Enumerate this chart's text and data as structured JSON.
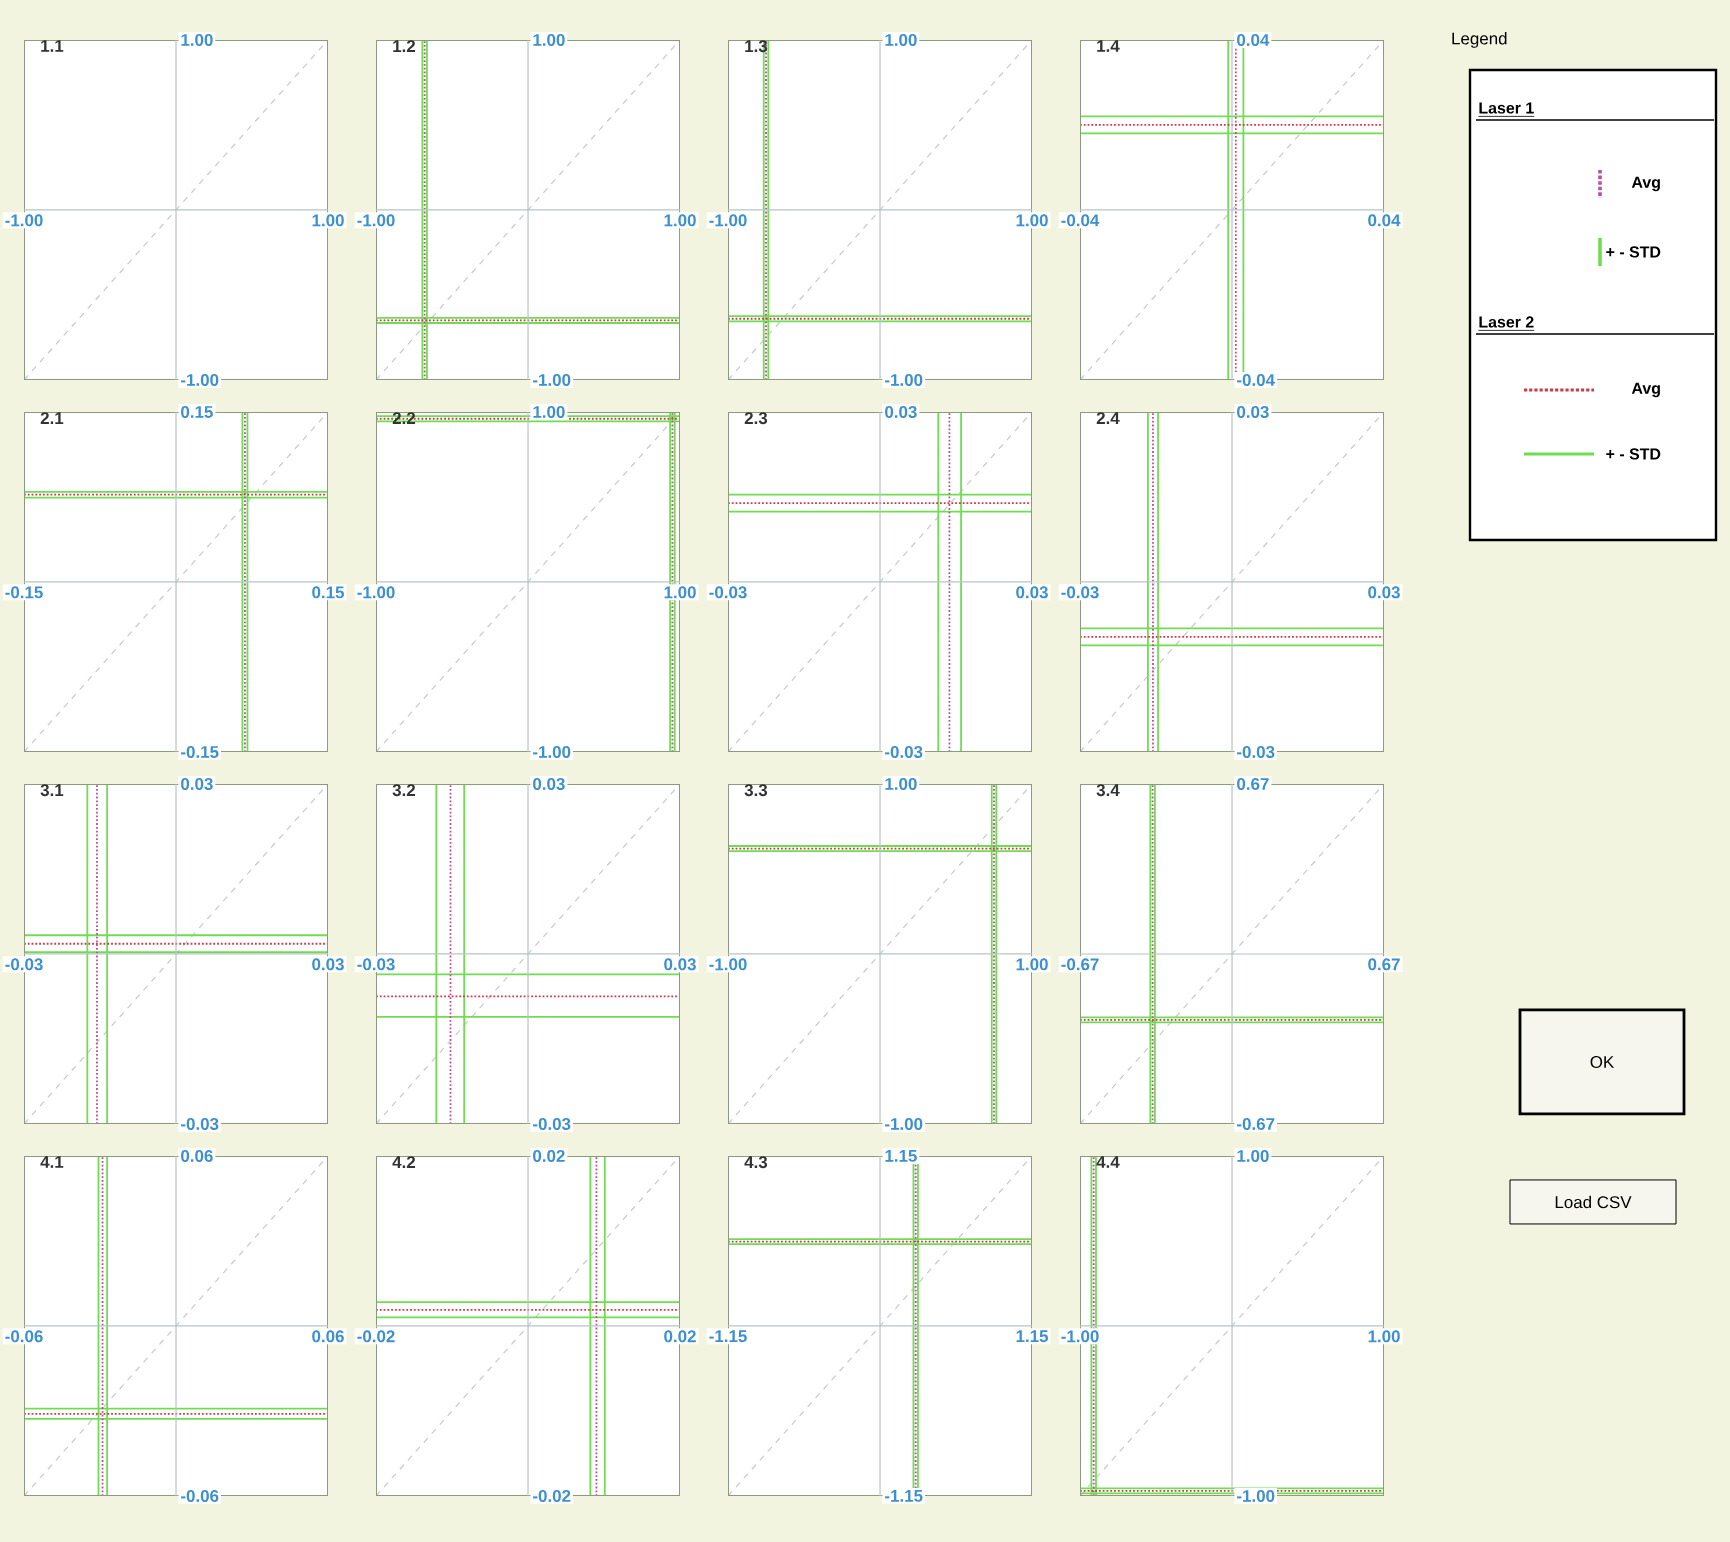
{
  "chart_data": [
    {
      "type": "line",
      "title": "1.1",
      "xlim": [
        -1,
        1
      ],
      "ylim": [
        -1,
        1
      ],
      "xticks": [
        {
          "value": -1,
          "label": "-1.00"
        },
        {
          "value": 1,
          "label": "1.00"
        }
      ],
      "yticks": [
        {
          "value": -1,
          "label": "-1.00"
        },
        {
          "value": 1,
          "label": "1.00"
        }
      ],
      "line_style": "dashed",
      "series": [
        {
          "color": "#c8c8c8",
          "x": [
            -1,
            1
          ],
          "values": [
            -1,
            1
          ]
        }
      ]
    },
    {
      "type": "line",
      "title": "1.2",
      "xlim": [
        -1,
        1
      ],
      "ylim": [
        -1,
        1
      ],
      "xticks": [
        {
          "value": -1,
          "label": "-1.00"
        },
        {
          "value": 1,
          "label": "1.00"
        }
      ],
      "yticks": [
        {
          "value": -1,
          "label": "-1.00"
        },
        {
          "value": 1,
          "label": "1.00"
        }
      ],
      "line_style": "dashed",
      "series": [
        {
          "color": "#c8c8c8",
          "x": [
            -1,
            1
          ],
          "values": [
            -1,
            1
          ]
        }
      ],
      "ref_lines": [
        {
          "axis": "x",
          "value": -0.695,
          "color": "#70dd50",
          "line_style": "solid"
        },
        {
          "axis": "x",
          "value": -0.665,
          "color": "#70dd50",
          "line_style": "solid"
        },
        {
          "axis": "y",
          "value": -0.665,
          "color": "#70dd50",
          "line_style": "solid"
        },
        {
          "axis": "y",
          "value": -0.635,
          "color": "#70dd50",
          "line_style": "solid"
        },
        {
          "axis": "x",
          "value": -0.68,
          "color": "#b8509a",
          "line_style": "dotted"
        },
        {
          "axis": "y",
          "value": -0.65,
          "color": "#cc3a4a",
          "line_style": "dotted"
        }
      ]
    },
    {
      "type": "line",
      "title": "1.3",
      "xlim": [
        -1,
        1
      ],
      "ylim": [
        -1,
        1
      ],
      "xticks": [
        {
          "value": -1,
          "label": "-1.00"
        },
        {
          "value": 1,
          "label": "1.00"
        }
      ],
      "yticks": [
        {
          "value": -1,
          "label": "-1.00"
        },
        {
          "value": 1,
          "label": "1.00"
        }
      ],
      "line_style": "dashed",
      "series": [
        {
          "color": "#c8c8c8",
          "x": [
            -1,
            1
          ],
          "values": [
            -1,
            1
          ]
        }
      ],
      "ref_lines": [
        {
          "axis": "x",
          "value": -0.765,
          "color": "#70dd50",
          "line_style": "solid"
        },
        {
          "axis": "x",
          "value": -0.735,
          "color": "#70dd50",
          "line_style": "solid"
        },
        {
          "axis": "y",
          "value": -0.655,
          "color": "#70dd50",
          "line_style": "solid"
        },
        {
          "axis": "y",
          "value": -0.625,
          "color": "#70dd50",
          "line_style": "solid"
        },
        {
          "axis": "x",
          "value": -0.75,
          "color": "#b8509a",
          "line_style": "dotted"
        },
        {
          "axis": "y",
          "value": -0.64,
          "color": "#cc3a4a",
          "line_style": "dotted"
        }
      ]
    },
    {
      "type": "line",
      "title": "1.4",
      "xlim": [
        -0.04,
        0.04
      ],
      "ylim": [
        -0.04,
        0.04
      ],
      "xticks": [
        {
          "value": -0.04,
          "label": "-0.04"
        },
        {
          "value": 0.04,
          "label": "0.04"
        }
      ],
      "yticks": [
        {
          "value": -0.04,
          "label": "-0.04"
        },
        {
          "value": 0.04,
          "label": "0.04"
        }
      ],
      "line_style": "dashed",
      "series": [
        {
          "color": "#c8c8c8",
          "x": [
            -0.04,
            0.04
          ],
          "values": [
            -0.04,
            0.04
          ]
        }
      ],
      "ref_lines": [
        {
          "axis": "x",
          "value": -0.001,
          "color": "#70dd50",
          "line_style": "solid"
        },
        {
          "axis": "x",
          "value": 0.003,
          "color": "#70dd50",
          "line_style": "solid"
        },
        {
          "axis": "y",
          "value": 0.018,
          "color": "#70dd50",
          "line_style": "solid"
        },
        {
          "axis": "y",
          "value": 0.022,
          "color": "#70dd50",
          "line_style": "solid"
        },
        {
          "axis": "x",
          "value": 0.001,
          "color": "#b8509a",
          "line_style": "dotted"
        },
        {
          "axis": "y",
          "value": 0.02,
          "color": "#cc3a4a",
          "line_style": "dotted"
        }
      ]
    },
    {
      "type": "line",
      "title": "2.1",
      "xlim": [
        -0.15,
        0.15
      ],
      "ylim": [
        -0.15,
        0.15
      ],
      "xticks": [
        {
          "value": -0.15,
          "label": "-0.15"
        },
        {
          "value": 0.15,
          "label": "0.15"
        }
      ],
      "yticks": [
        {
          "value": -0.15,
          "label": "-0.15"
        },
        {
          "value": 0.15,
          "label": "0.15"
        }
      ],
      "line_style": "dashed",
      "series": [
        {
          "color": "#c8c8c8",
          "x": [
            -0.15,
            0.15
          ],
          "values": [
            -0.15,
            0.15
          ]
        }
      ],
      "ref_lines": [
        {
          "axis": "x",
          "value": 0.0655,
          "color": "#70dd50",
          "line_style": "solid"
        },
        {
          "axis": "x",
          "value": 0.0705,
          "color": "#70dd50",
          "line_style": "solid"
        },
        {
          "axis": "y",
          "value": 0.0745,
          "color": "#70dd50",
          "line_style": "solid"
        },
        {
          "axis": "y",
          "value": 0.0795,
          "color": "#70dd50",
          "line_style": "solid"
        },
        {
          "axis": "x",
          "value": 0.068,
          "color": "#b8509a",
          "line_style": "dotted"
        },
        {
          "axis": "y",
          "value": 0.077,
          "color": "#cc3a4a",
          "line_style": "dotted"
        }
      ]
    },
    {
      "type": "line",
      "title": "2.2",
      "xlim": [
        -1,
        1
      ],
      "ylim": [
        -1,
        1
      ],
      "xticks": [
        {
          "value": -1,
          "label": "-1.00"
        },
        {
          "value": 1,
          "label": "1.00"
        }
      ],
      "yticks": [
        {
          "value": -1,
          "label": "-1.00"
        },
        {
          "value": 1,
          "label": "1.00"
        }
      ],
      "line_style": "dashed",
      "series": [
        {
          "color": "#c8c8c8",
          "x": [
            -1,
            1
          ],
          "values": [
            -1,
            1
          ]
        }
      ],
      "ref_lines": [
        {
          "axis": "x",
          "value": 0.935,
          "color": "#70dd50",
          "line_style": "solid"
        },
        {
          "axis": "x",
          "value": 0.965,
          "color": "#70dd50",
          "line_style": "solid"
        },
        {
          "axis": "y",
          "value": 0.945,
          "color": "#70dd50",
          "line_style": "solid"
        },
        {
          "axis": "y",
          "value": 0.975,
          "color": "#70dd50",
          "line_style": "solid"
        },
        {
          "axis": "x",
          "value": 0.95,
          "color": "#b8509a",
          "line_style": "dotted"
        },
        {
          "axis": "y",
          "value": 0.96,
          "color": "#cc3a4a",
          "line_style": "dotted"
        }
      ]
    },
    {
      "type": "line",
      "title": "2.3",
      "xlim": [
        -0.03,
        0.03
      ],
      "ylim": [
        -0.03,
        0.03
      ],
      "xticks": [
        {
          "value": -0.03,
          "label": "-0.03"
        },
        {
          "value": 0.03,
          "label": "0.03"
        }
      ],
      "yticks": [
        {
          "value": -0.03,
          "label": "-0.03"
        },
        {
          "value": 0.03,
          "label": "0.03"
        }
      ],
      "line_style": "dashed",
      "series": [
        {
          "color": "#c8c8c8",
          "x": [
            -0.03,
            0.03
          ],
          "values": [
            -0.03,
            0.03
          ]
        }
      ],
      "ref_lines": [
        {
          "axis": "x",
          "value": 0.0115,
          "color": "#70dd50",
          "line_style": "solid"
        },
        {
          "axis": "x",
          "value": 0.016,
          "color": "#70dd50",
          "line_style": "solid"
        },
        {
          "axis": "y",
          "value": 0.0124,
          "color": "#70dd50",
          "line_style": "solid"
        },
        {
          "axis": "y",
          "value": 0.0154,
          "color": "#70dd50",
          "line_style": "solid"
        },
        {
          "axis": "x",
          "value": 0.0137,
          "color": "#b8509a",
          "line_style": "dotted"
        },
        {
          "axis": "y",
          "value": 0.0139,
          "color": "#cc3a4a",
          "line_style": "dotted"
        }
      ]
    },
    {
      "type": "line",
      "title": "2.4",
      "xlim": [
        -0.03,
        0.03
      ],
      "ylim": [
        -0.03,
        0.03
      ],
      "xticks": [
        {
          "value": -0.03,
          "label": "-0.03"
        },
        {
          "value": 0.03,
          "label": "0.03"
        }
      ],
      "yticks": [
        {
          "value": -0.03,
          "label": "-0.03"
        },
        {
          "value": 0.03,
          "label": "0.03"
        }
      ],
      "line_style": "dashed",
      "series": [
        {
          "color": "#c8c8c8",
          "x": [
            -0.03,
            0.03
          ],
          "values": [
            -0.03,
            0.03
          ]
        }
      ],
      "ref_lines": [
        {
          "axis": "x",
          "value": -0.0166,
          "color": "#70dd50",
          "line_style": "solid"
        },
        {
          "axis": "x",
          "value": -0.0146,
          "color": "#70dd50",
          "line_style": "solid"
        },
        {
          "axis": "y",
          "value": -0.0112,
          "color": "#70dd50",
          "line_style": "solid"
        },
        {
          "axis": "y",
          "value": -0.0082,
          "color": "#70dd50",
          "line_style": "solid"
        },
        {
          "axis": "x",
          "value": -0.0156,
          "color": "#b8509a",
          "line_style": "dotted"
        },
        {
          "axis": "y",
          "value": -0.0097,
          "color": "#cc3a4a",
          "line_style": "dotted"
        }
      ]
    },
    {
      "type": "line",
      "title": "3.1",
      "xlim": [
        -0.03,
        0.03
      ],
      "ylim": [
        -0.03,
        0.03
      ],
      "xticks": [
        {
          "value": -0.03,
          "label": "-0.03"
        },
        {
          "value": 0.03,
          "label": "0.03"
        }
      ],
      "yticks": [
        {
          "value": -0.03,
          "label": "-0.03"
        },
        {
          "value": 0.03,
          "label": "0.03"
        }
      ],
      "line_style": "dashed",
      "series": [
        {
          "color": "#c8c8c8",
          "x": [
            -0.03,
            0.03
          ],
          "values": [
            -0.03,
            0.03
          ]
        }
      ],
      "ref_lines": [
        {
          "axis": "x",
          "value": -0.0175,
          "color": "#70dd50",
          "line_style": "solid"
        },
        {
          "axis": "x",
          "value": -0.0136,
          "color": "#70dd50",
          "line_style": "solid"
        },
        {
          "axis": "y",
          "value": 0.0003,
          "color": "#70dd50",
          "line_style": "solid"
        },
        {
          "axis": "y",
          "value": 0.0033,
          "color": "#70dd50",
          "line_style": "solid"
        },
        {
          "axis": "x",
          "value": -0.0156,
          "color": "#b8509a",
          "line_style": "dotted"
        },
        {
          "axis": "y",
          "value": 0.0018,
          "color": "#cc3a4a",
          "line_style": "dotted"
        }
      ]
    },
    {
      "type": "line",
      "title": "3.2",
      "xlim": [
        -0.03,
        0.03
      ],
      "ylim": [
        -0.03,
        0.03
      ],
      "xticks": [
        {
          "value": -0.03,
          "label": "-0.03"
        },
        {
          "value": 0.03,
          "label": "0.03"
        }
      ],
      "yticks": [
        {
          "value": -0.03,
          "label": "-0.03"
        },
        {
          "value": 0.03,
          "label": "0.03"
        }
      ],
      "line_style": "dashed",
      "series": [
        {
          "color": "#c8c8c8",
          "x": [
            -0.03,
            0.03
          ],
          "values": [
            -0.03,
            0.03
          ]
        }
      ],
      "ref_lines": [
        {
          "axis": "x",
          "value": -0.0181,
          "color": "#70dd50",
          "line_style": "solid"
        },
        {
          "axis": "x",
          "value": -0.0126,
          "color": "#70dd50",
          "line_style": "solid"
        },
        {
          "axis": "y",
          "value": -0.0111,
          "color": "#70dd50",
          "line_style": "solid"
        },
        {
          "axis": "y",
          "value": -0.0036,
          "color": "#70dd50",
          "line_style": "solid"
        },
        {
          "axis": "x",
          "value": -0.0153,
          "color": "#b8509a",
          "line_style": "dotted"
        },
        {
          "axis": "y",
          "value": -0.0075,
          "color": "#cc3a4a",
          "line_style": "dotted"
        }
      ]
    },
    {
      "type": "line",
      "title": "3.3",
      "xlim": [
        -1,
        1
      ],
      "ylim": [
        -1,
        1
      ],
      "xticks": [
        {
          "value": -1,
          "label": "-1.00"
        },
        {
          "value": 1,
          "label": "1.00"
        }
      ],
      "yticks": [
        {
          "value": -1,
          "label": "-1.00"
        },
        {
          "value": 1,
          "label": "1.00"
        }
      ],
      "line_style": "dashed",
      "series": [
        {
          "color": "#c8c8c8",
          "x": [
            -1,
            1
          ],
          "values": [
            -1,
            1
          ]
        }
      ],
      "ref_lines": [
        {
          "axis": "x",
          "value": 0.735,
          "color": "#70dd50",
          "line_style": "solid"
        },
        {
          "axis": "x",
          "value": 0.765,
          "color": "#70dd50",
          "line_style": "solid"
        },
        {
          "axis": "y",
          "value": 0.605,
          "color": "#70dd50",
          "line_style": "solid"
        },
        {
          "axis": "y",
          "value": 0.635,
          "color": "#70dd50",
          "line_style": "solid"
        },
        {
          "axis": "x",
          "value": 0.75,
          "color": "#b8509a",
          "line_style": "dotted"
        },
        {
          "axis": "y",
          "value": 0.62,
          "color": "#cc3a4a",
          "line_style": "dotted"
        }
      ]
    },
    {
      "type": "line",
      "title": "3.4",
      "xlim": [
        -0.67,
        0.67
      ],
      "ylim": [
        -0.67,
        0.67
      ],
      "xticks": [
        {
          "value": -0.67,
          "label": "-0.67"
        },
        {
          "value": 0.67,
          "label": "0.67"
        }
      ],
      "yticks": [
        {
          "value": -0.67,
          "label": "-0.67"
        },
        {
          "value": 0.67,
          "label": "0.67"
        }
      ],
      "line_style": "dashed",
      "series": [
        {
          "color": "#c8c8c8",
          "x": [
            -0.67,
            0.67
          ],
          "values": [
            -0.67,
            0.67
          ]
        }
      ],
      "ref_lines": [
        {
          "axis": "x",
          "value": -0.36,
          "color": "#70dd50",
          "line_style": "solid"
        },
        {
          "axis": "x",
          "value": -0.34,
          "color": "#70dd50",
          "line_style": "solid"
        },
        {
          "axis": "y",
          "value": -0.27,
          "color": "#70dd50",
          "line_style": "solid"
        },
        {
          "axis": "y",
          "value": -0.25,
          "color": "#70dd50",
          "line_style": "solid"
        },
        {
          "axis": "x",
          "value": -0.35,
          "color": "#b8509a",
          "line_style": "dotted"
        },
        {
          "axis": "y",
          "value": -0.26,
          "color": "#cc3a4a",
          "line_style": "dotted"
        }
      ]
    },
    {
      "type": "line",
      "title": "4.1",
      "xlim": [
        -0.06,
        0.06
      ],
      "ylim": [
        -0.06,
        0.06
      ],
      "xticks": [
        {
          "value": -0.06,
          "label": "-0.06"
        },
        {
          "value": 0.06,
          "label": "0.06"
        }
      ],
      "yticks": [
        {
          "value": -0.06,
          "label": "-0.06"
        },
        {
          "value": 0.06,
          "label": "0.06"
        }
      ],
      "line_style": "dashed",
      "series": [
        {
          "color": "#c8c8c8",
          "x": [
            -0.06,
            0.06
          ],
          "values": [
            -0.06,
            0.06
          ]
        }
      ],
      "ref_lines": [
        {
          "axis": "x",
          "value": -0.0306,
          "color": "#70dd50",
          "line_style": "solid"
        },
        {
          "axis": "x",
          "value": -0.0272,
          "color": "#70dd50",
          "line_style": "solid"
        },
        {
          "axis": "y",
          "value": -0.0328,
          "color": "#70dd50",
          "line_style": "solid"
        },
        {
          "axis": "y",
          "value": -0.0292,
          "color": "#70dd50",
          "line_style": "solid"
        },
        {
          "axis": "x",
          "value": -0.029,
          "color": "#b8509a",
          "line_style": "dotted"
        },
        {
          "axis": "y",
          "value": -0.031,
          "color": "#cc3a4a",
          "line_style": "dotted"
        }
      ]
    },
    {
      "type": "line",
      "title": "4.2",
      "xlim": [
        -0.02,
        0.02
      ],
      "ylim": [
        -0.02,
        0.02
      ],
      "xticks": [
        {
          "value": -0.02,
          "label": "-0.02"
        },
        {
          "value": 0.02,
          "label": "0.02"
        }
      ],
      "yticks": [
        {
          "value": -0.02,
          "label": "-0.02"
        },
        {
          "value": 0.02,
          "label": "0.02"
        }
      ],
      "line_style": "dashed",
      "series": [
        {
          "color": "#c8c8c8",
          "x": [
            -0.02,
            0.02
          ],
          "values": [
            -0.02,
            0.02
          ]
        }
      ],
      "ref_lines": [
        {
          "axis": "x",
          "value": 0.0082,
          "color": "#70dd50",
          "line_style": "solid"
        },
        {
          "axis": "x",
          "value": 0.0101,
          "color": "#70dd50",
          "line_style": "solid"
        },
        {
          "axis": "y",
          "value": 0.001,
          "color": "#70dd50",
          "line_style": "solid"
        },
        {
          "axis": "y",
          "value": 0.0028,
          "color": "#70dd50",
          "line_style": "solid"
        },
        {
          "axis": "x",
          "value": 0.009,
          "color": "#b8509a",
          "line_style": "dotted"
        },
        {
          "axis": "y",
          "value": 0.0019,
          "color": "#cc3a4a",
          "line_style": "dotted"
        }
      ]
    },
    {
      "type": "line",
      "title": "4.3",
      "xlim": [
        -1.15,
        1.15
      ],
      "ylim": [
        -1.15,
        1.15
      ],
      "xticks": [
        {
          "value": -1.15,
          "label": "-1.15"
        },
        {
          "value": 1.15,
          "label": "1.15"
        }
      ],
      "yticks": [
        {
          "value": -1.15,
          "label": "-1.15"
        },
        {
          "value": 1.15,
          "label": "1.15"
        }
      ],
      "line_style": "dashed",
      "series": [
        {
          "color": "#c8c8c8",
          "x": [
            -1.15,
            1.15
          ],
          "values": [
            -1.15,
            1.15
          ]
        }
      ],
      "ref_lines": [
        {
          "axis": "x",
          "value": 0.253,
          "color": "#70dd50",
          "line_style": "solid"
        },
        {
          "axis": "x",
          "value": 0.287,
          "color": "#70dd50",
          "line_style": "solid"
        },
        {
          "axis": "y",
          "value": 0.553,
          "color": "#70dd50",
          "line_style": "solid"
        },
        {
          "axis": "y",
          "value": 0.587,
          "color": "#70dd50",
          "line_style": "solid"
        },
        {
          "axis": "x",
          "value": 0.27,
          "color": "#b8509a",
          "line_style": "dotted"
        },
        {
          "axis": "y",
          "value": 0.57,
          "color": "#cc3a4a",
          "line_style": "dotted"
        }
      ]
    },
    {
      "type": "line",
      "title": "4.4",
      "xlim": [
        -1,
        1
      ],
      "ylim": [
        -1,
        1
      ],
      "xticks": [
        {
          "value": -1,
          "label": "-1.00"
        },
        {
          "value": 1,
          "label": "1.00"
        }
      ],
      "yticks": [
        {
          "value": -1,
          "label": "-1.00"
        },
        {
          "value": 1,
          "label": "1.00"
        }
      ],
      "line_style": "dashed",
      "series": [
        {
          "color": "#c8c8c8",
          "x": [
            -1,
            1
          ],
          "values": [
            -1,
            1
          ]
        }
      ],
      "ref_lines": [
        {
          "axis": "x",
          "value": -0.925,
          "color": "#70dd50",
          "line_style": "solid"
        },
        {
          "axis": "x",
          "value": -0.895,
          "color": "#70dd50",
          "line_style": "solid"
        },
        {
          "axis": "y",
          "value": -0.985,
          "color": "#70dd50",
          "line_style": "solid"
        },
        {
          "axis": "y",
          "value": -0.955,
          "color": "#70dd50",
          "line_style": "solid"
        },
        {
          "axis": "x",
          "value": -0.91,
          "color": "#b8509a",
          "line_style": "dotted"
        },
        {
          "axis": "y",
          "value": -0.97,
          "color": "#cc3a4a",
          "line_style": "dotted"
        }
      ]
    },
    {
      "type": "other",
      "title": "Legend",
      "annotations": [
        "Laser 1",
        "Laser 2",
        "OK",
        "Load CSV"
      ],
      "series": [
        {
          "name": "Avg",
          "color": "#b8509a",
          "line_style": "dotted"
        },
        {
          "name": "+ - STD",
          "color": "#70dd50",
          "line_style": "solid"
        },
        {
          "name": "Avg",
          "color": "#cc3a4a",
          "line_style": "dotted"
        },
        {
          "name": "+ - STD",
          "color": "#70dd50",
          "line_style": "solid"
        }
      ]
    }
  ]
}
